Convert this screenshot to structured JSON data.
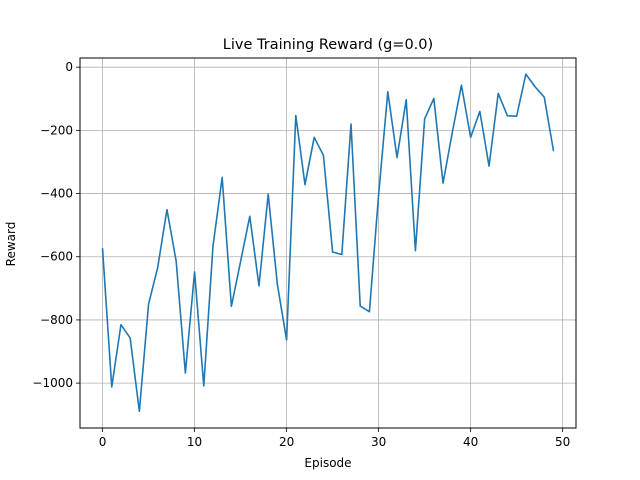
{
  "chart_data": {
    "type": "line",
    "title": "Live Training Reward (g=0.0)",
    "xlabel": "Episode",
    "ylabel": "Reward",
    "xlim": [
      -2.45,
      51.45
    ],
    "ylim": [
      -1142,
      29
    ],
    "xticks": [
      0,
      10,
      20,
      30,
      40,
      50
    ],
    "yticks": [
      0,
      -200,
      -400,
      -600,
      -800,
      -1000
    ],
    "xtick_labels": [
      "0",
      "10",
      "20",
      "30",
      "40",
      "50"
    ],
    "ytick_labels": [
      "0",
      "−200",
      "−400",
      "−600",
      "−800",
      "−1000"
    ],
    "grid": true,
    "line_color": "#1f77b4",
    "series": [
      {
        "x": [
          0,
          1,
          2,
          3,
          4,
          5,
          6,
          7,
          8,
          9,
          10,
          11,
          12,
          13,
          14,
          15,
          16,
          17,
          18,
          19,
          20,
          21,
          22,
          23,
          24,
          25,
          26,
          27,
          28,
          29,
          30,
          31,
          32,
          33,
          34,
          35,
          36,
          37,
          38,
          39,
          40,
          41,
          42,
          43,
          44,
          45,
          46,
          47,
          48,
          49
        ],
        "values": [
          -575,
          -1012,
          -815,
          -857,
          -1089,
          -750,
          -633,
          -451,
          -614,
          -968,
          -648,
          -1009,
          -567,
          -349,
          -757,
          -615,
          -472,
          -692,
          -402,
          -688,
          -863,
          -153,
          -372,
          -222,
          -279,
          -585,
          -593,
          -180,
          -756,
          -774,
          -404,
          -78,
          -286,
          -103,
          -581,
          -164,
          -99,
          -367,
          -208,
          -57,
          -222,
          -140,
          -313,
          -83,
          -154,
          -155,
          -22,
          -62,
          -95,
          -264
        ]
      }
    ]
  }
}
